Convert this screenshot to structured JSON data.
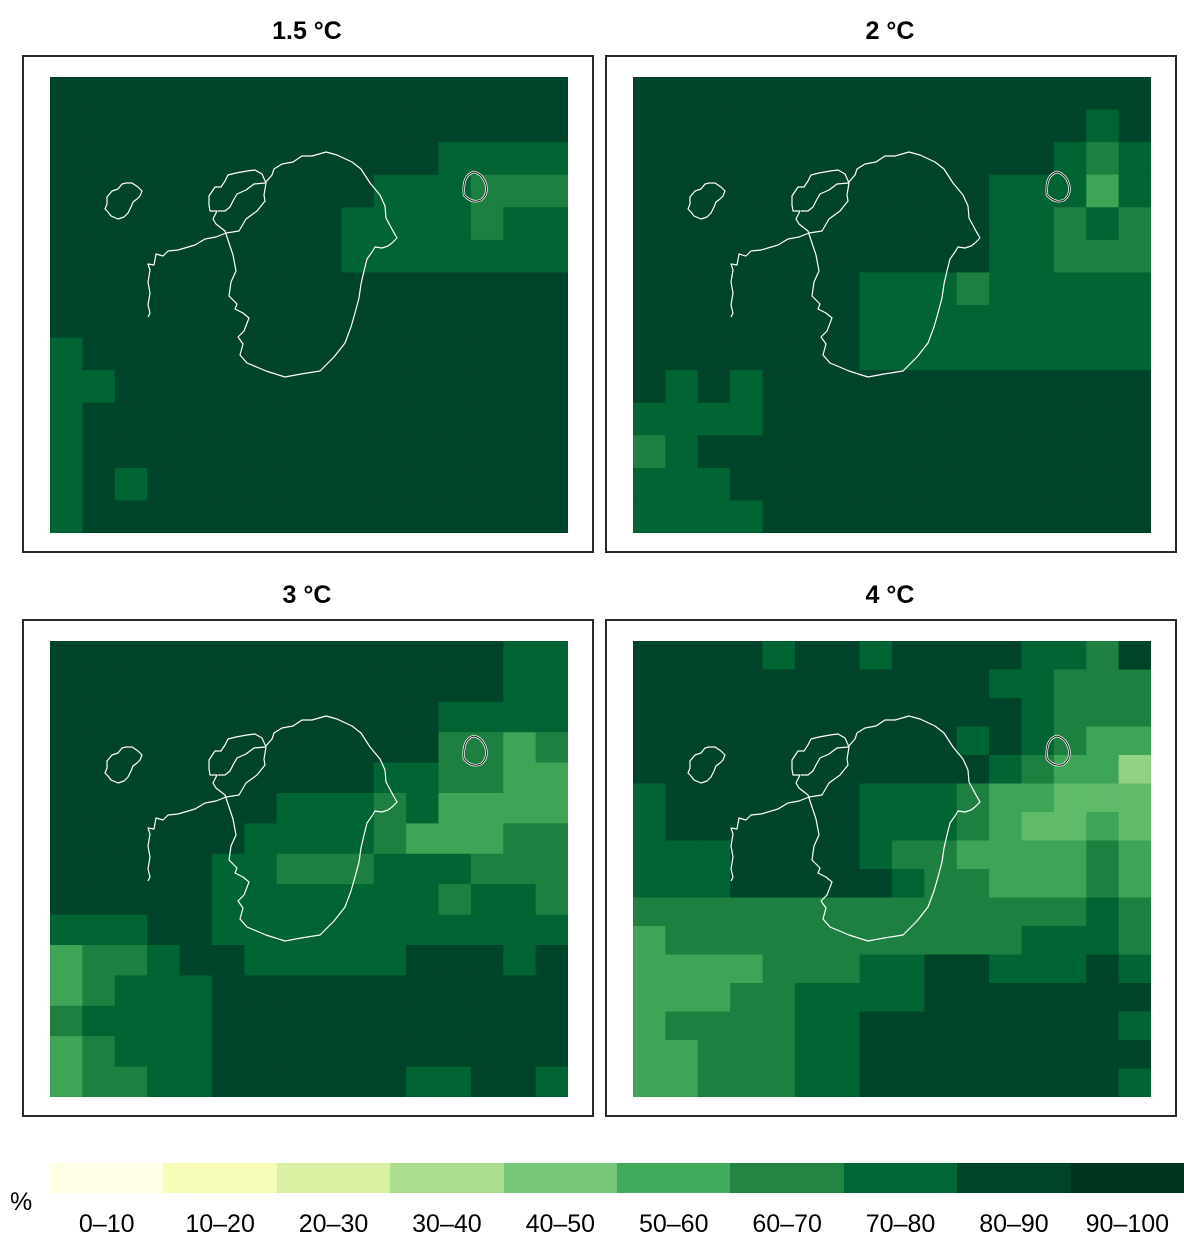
{
  "panels": [
    {
      "title": "1.5 °C",
      "grid": [
        "9999999999999999",
        "9999999999999999",
        "9999999999998888",
        "9999999999888777",
        "9999999998888788",
        "9999999998888888",
        "9999999999999999",
        "9999999999999999",
        "8999999999999999",
        "8899999999999999",
        "8999999999999999",
        "8999999999999999",
        "8989999999999999",
        "8999999999999999"
      ]
    },
    {
      "title": "2 °C",
      "grid": [
        "9999999999999999",
        "9999999999999989",
        "9999999999999878",
        "9999999999988868",
        "9999999999988787",
        "9999999999988777",
        "9999999888788888",
        "9999999888888888",
        "9999999888888888",
        "9898999999999999",
        "8888999999999999",
        "7899999999999999",
        "8889999999999999",
        "8888999999999999"
      ]
    },
    {
      "title": "3 °C",
      "grid": [
        "9999999999999988",
        "9999999999999988",
        "9999999999998888",
        "9999999999997767",
        "9999999999887766",
        "9999999888786666",
        "9999998888766677",
        "9999988777888777",
        "9999988888887887",
        "8889988888888888",
        "6778998888899989",
        "6788899999999999",
        "7888899999999999",
        "6788899999999999",
        "6778899999988998"
      ]
    },
    {
      "title": "4 °C",
      "grid": [
        "9999899899998879",
        "9999999999988777",
        "9999999999998777",
        "9999999999898766",
        "9999999999987664",
        "8999999888766555",
        "8999999888765565",
        "8889999877666676",
        "8889999987766676",
        "7777777777777787",
        "6777777777778887",
        "6666777889988898",
        "6667788889999999",
        "6777788999999998",
        "6677788999999999",
        "6677788999999998"
      ]
    }
  ],
  "legend": {
    "unit": "%",
    "classes": [
      "0–10",
      "10–20",
      "20–30",
      "30–40",
      "40–50",
      "50–60",
      "60–70",
      "70–80",
      "80–90",
      "90–100"
    ],
    "colors": [
      "#ffffe5",
      "#f7fcb9",
      "#d9f0a3",
      "#addd8e",
      "#78c679",
      "#41ab5d",
      "#238443",
      "#006837",
      "#004529",
      "#00331d"
    ]
  },
  "palette": [
    "#ffffe5",
    "#f7fcb9",
    "#d9f0a3",
    "#addd8e",
    "#93d284",
    "#5fbb6a",
    "#3ea456",
    "#1e8040",
    "#006433",
    "#00442a"
  ]
}
